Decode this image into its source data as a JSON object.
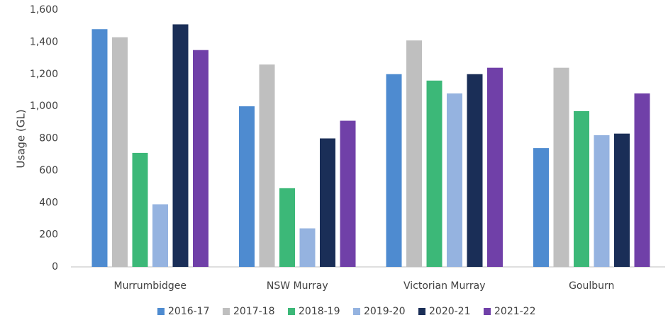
{
  "chart_data": {
    "type": "bar",
    "y_label": "Usage (GL)",
    "categories": [
      "Murrumbidgee",
      "NSW Murray",
      "Victorian Murray",
      "Goulburn"
    ],
    "series": [
      {
        "name": "2016-17",
        "color": "#4e8bd0",
        "values": [
          1480,
          1000,
          1200,
          740
        ]
      },
      {
        "name": "2017-18",
        "color": "#bfbfbf",
        "values": [
          1430,
          1260,
          1410,
          1240
        ]
      },
      {
        "name": "2018-19",
        "color": "#3cb878",
        "values": [
          710,
          490,
          1160,
          970
        ]
      },
      {
        "name": "2019-20",
        "color": "#95b3e0",
        "values": [
          390,
          240,
          1080,
          820
        ]
      },
      {
        "name": "2020-21",
        "color": "#1a2e57",
        "values": [
          1510,
          800,
          1200,
          830
        ]
      },
      {
        "name": "2021-22",
        "color": "#7040a8",
        "values": [
          1350,
          910,
          1240,
          1080
        ]
      }
    ],
    "ylim": [
      0,
      1600
    ],
    "yticks": [
      0,
      200,
      400,
      600,
      800,
      {
        "value": 1000,
        "label": "1,000"
      },
      {
        "value": 1200,
        "label": "1,200"
      },
      {
        "value": 1400,
        "label": "1,400"
      },
      {
        "value": 1600,
        "label": "1,600"
      }
    ],
    "grid": false,
    "legend": "bottom"
  }
}
